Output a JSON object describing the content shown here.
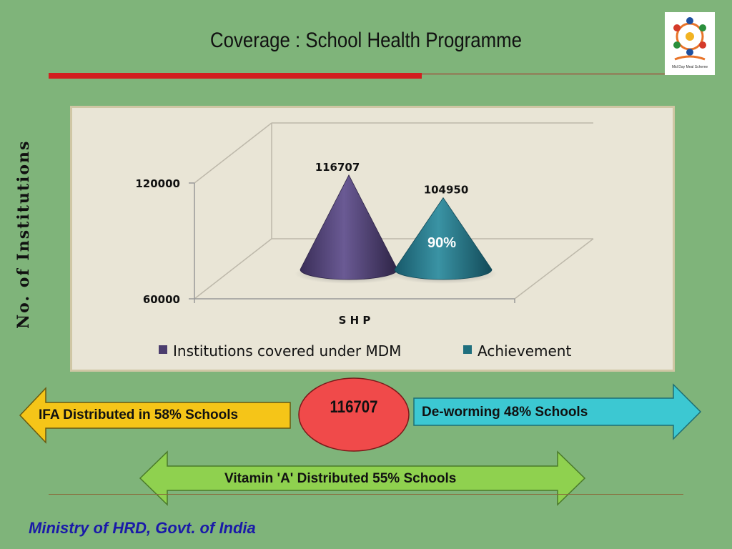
{
  "title": "Coverage : School Health Programme",
  "logo": {
    "text": "Mid Day Meal Scheme",
    "icon": "mdm-logo"
  },
  "y_axis_title": "No. of Institutions",
  "chart_data": {
    "type": "bar",
    "shape": "cone-3d",
    "categories": [
      "S H P"
    ],
    "xlabel": "S H P",
    "ylabel": "No. of Institutions",
    "yticks": [
      60000,
      120000
    ],
    "ylim": [
      60000,
      120000
    ],
    "series": [
      {
        "name": "Institutions covered under MDM",
        "values": [
          116707
        ],
        "color": "#4b3d6e",
        "label": "116707"
      },
      {
        "name": "Achievement",
        "values": [
          104950
        ],
        "color": "#1f6f7e",
        "label": "104950"
      }
    ],
    "annotation": "90%",
    "legend": "bottom"
  },
  "arrows": {
    "ifa": "IFA Distributed in 58% Schools",
    "deworming": "De-worming 48% Schools",
    "vitamin": "Vitamin 'A' Distributed 55% Schools",
    "center_value": "116707"
  },
  "colors": {
    "background": "#7fb47a",
    "accent_red": "#d21f1f",
    "ifa_arrow": "#f5c518",
    "deworm_arrow": "#3cc8d2",
    "vitamin_arrow": "#8fd14f",
    "center_oval": "#f04a4a",
    "footer": "#1a1aa8"
  },
  "footer": "Ministry of HRD, Govt. of India"
}
